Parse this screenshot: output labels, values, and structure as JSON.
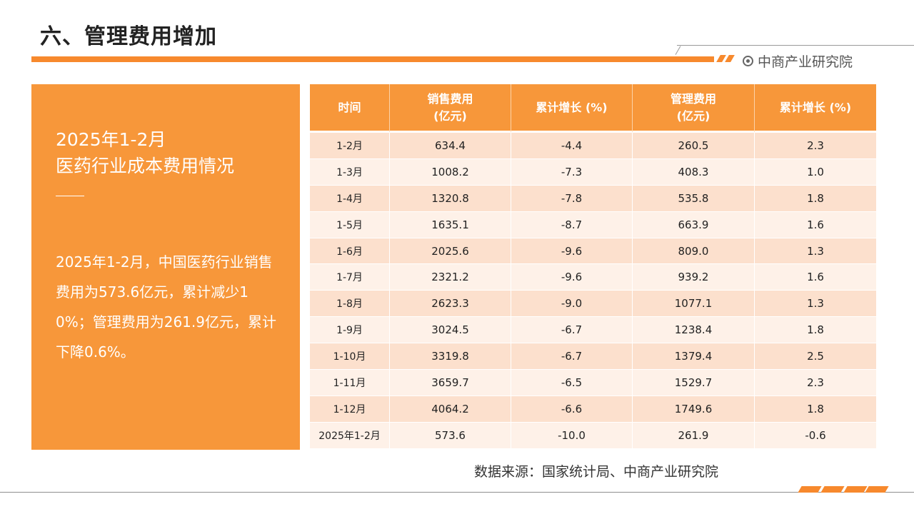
{
  "header": {
    "title": "六、管理费用增加",
    "brand": "中商产业研究院",
    "accent_color": "#F7892D"
  },
  "left_panel": {
    "heading_line1": "2025年1-2月",
    "heading_line2": "医药行业成本费用情况",
    "body": "2025年1-2月，中国医药行业销售费用为573.6亿元，累计减少10%；管理费用为261.9亿元，累计下降0.6%。",
    "background_color": "#F7973A"
  },
  "table": {
    "headers": [
      [
        "时间",
        ""
      ],
      [
        "销售费用",
        "(亿元)"
      ],
      [
        "累计增长 (%)",
        ""
      ],
      [
        "管理费用",
        "(亿元)"
      ],
      [
        "累计增长 (%)",
        ""
      ]
    ],
    "rows": [
      [
        "1-2月",
        "634.4",
        "-4.4",
        "260.5",
        "2.3"
      ],
      [
        "1-3月",
        "1008.2",
        "-7.3",
        "408.3",
        "1.0"
      ],
      [
        "1-4月",
        "1320.8",
        "-7.8",
        "535.8",
        "1.8"
      ],
      [
        "1-5月",
        "1635.1",
        "-8.7",
        "663.9",
        "1.6"
      ],
      [
        "1-6月",
        "2025.6",
        "-9.6",
        "809.0",
        "1.3"
      ],
      [
        "1-7月",
        "2321.2",
        "-9.6",
        "939.2",
        "1.6"
      ],
      [
        "1-8月",
        "2623.3",
        "-9.0",
        "1077.1",
        "1.3"
      ],
      [
        "1-9月",
        "3024.5",
        "-6.7",
        "1238.4",
        "1.8"
      ],
      [
        "1-10月",
        "3319.8",
        "-6.7",
        "1379.4",
        "2.5"
      ],
      [
        "1-11月",
        "3659.7",
        "-6.5",
        "1529.7",
        "2.3"
      ],
      [
        "1-12月",
        "4064.2",
        "-6.6",
        "1749.6",
        "1.8"
      ],
      [
        "2025年1-2月",
        "573.6",
        "-10.0",
        "261.9",
        "-0.6"
      ]
    ]
  },
  "footer": {
    "source": "数据来源：国家统计局、中商产业研究院"
  }
}
